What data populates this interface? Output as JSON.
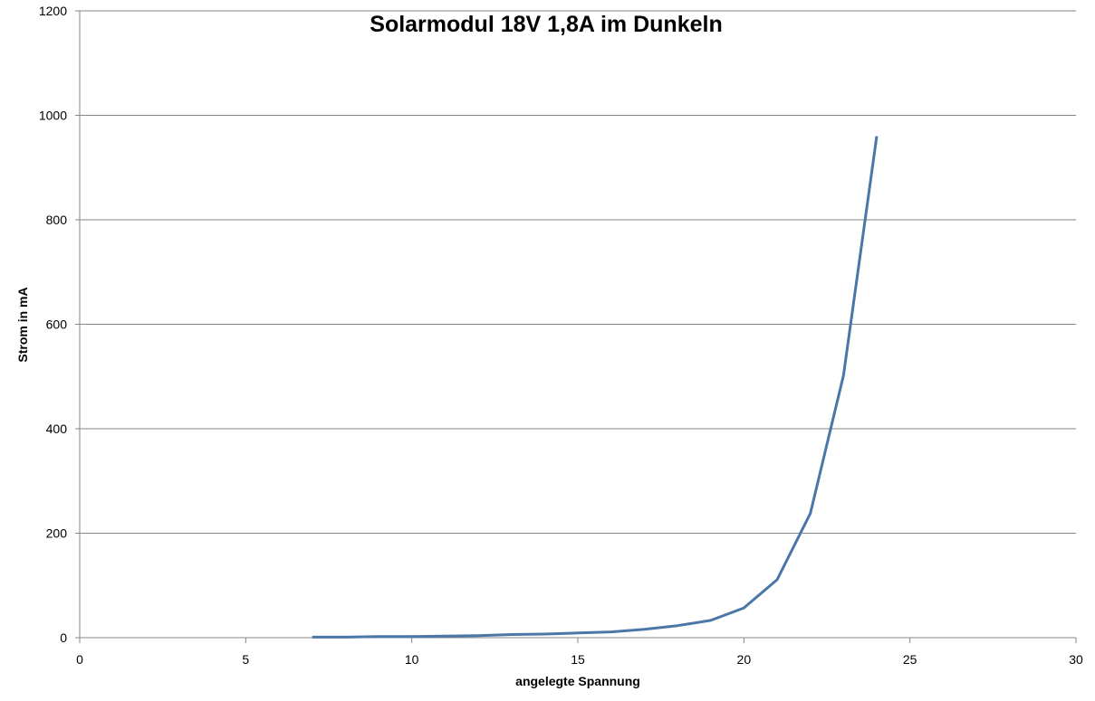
{
  "chart_data": {
    "type": "line",
    "title": "Solarmodul 18V 1,8A im Dunkeln",
    "xlabel": "angelegte Spannung",
    "ylabel": "Strom in mA",
    "xlim": [
      0,
      30
    ],
    "ylim": [
      0,
      1200
    ],
    "xticks": [
      0,
      5,
      10,
      15,
      20,
      25,
      30
    ],
    "yticks": [
      0,
      200,
      400,
      600,
      800,
      1000,
      1200
    ],
    "grid": "horizontal",
    "legend": "none",
    "series": [
      {
        "color": "#4a76a8",
        "points": [
          {
            "x": 7,
            "y": 1
          },
          {
            "x": 8,
            "y": 1
          },
          {
            "x": 9,
            "y": 2
          },
          {
            "x": 10,
            "y": 2
          },
          {
            "x": 11,
            "y": 3
          },
          {
            "x": 12,
            "y": 4
          },
          {
            "x": 13,
            "y": 6
          },
          {
            "x": 14,
            "y": 7
          },
          {
            "x": 15,
            "y": 9
          },
          {
            "x": 16,
            "y": 11
          },
          {
            "x": 17,
            "y": 16
          },
          {
            "x": 18,
            "y": 23
          },
          {
            "x": 19,
            "y": 33
          },
          {
            "x": 20,
            "y": 57
          },
          {
            "x": 21,
            "y": 111
          },
          {
            "x": 22,
            "y": 238
          },
          {
            "x": 23,
            "y": 502
          },
          {
            "x": 24,
            "y": 960
          }
        ]
      }
    ]
  }
}
